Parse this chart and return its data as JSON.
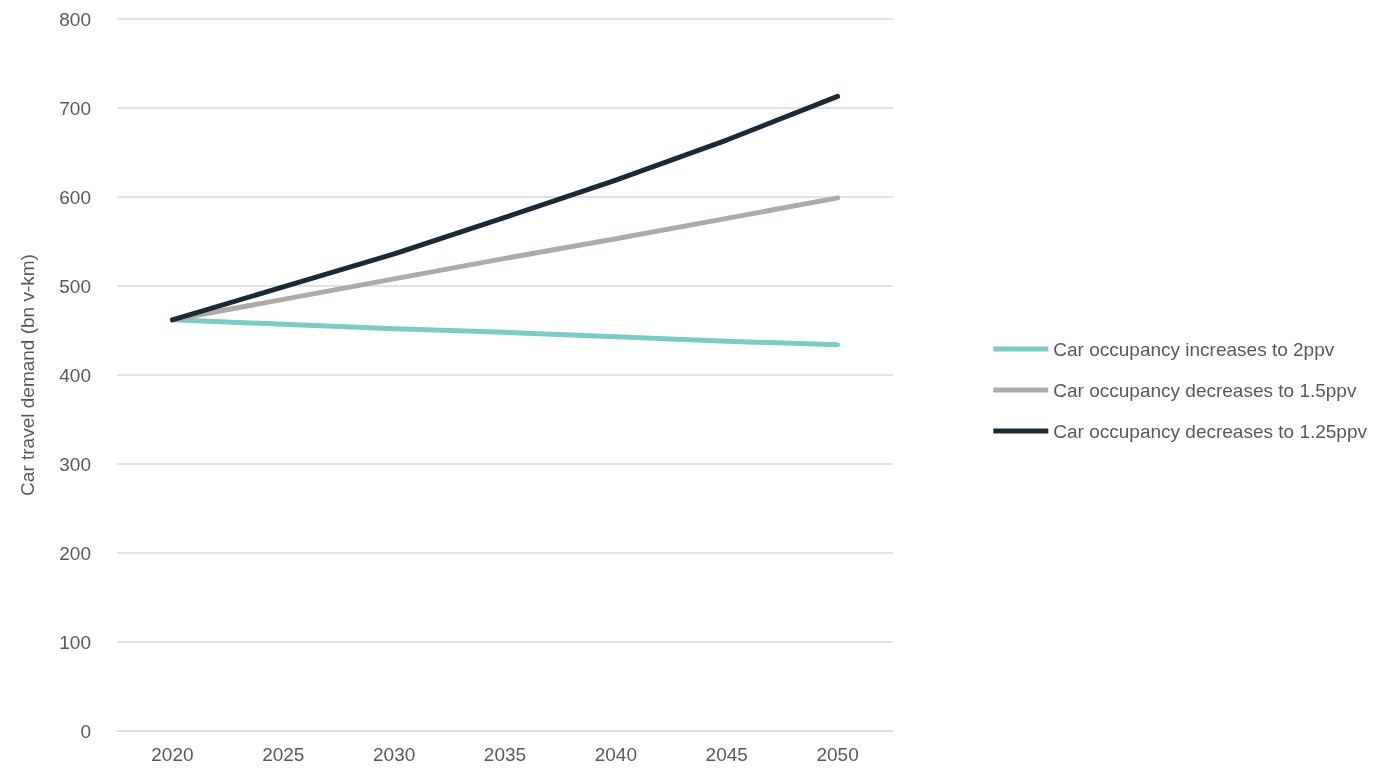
{
  "chart_data": {
    "type": "line",
    "ylabel": "Car travel demand (bn v-km)",
    "categories": [
      "2020",
      "2025",
      "2030",
      "2035",
      "2040",
      "2045",
      "2050"
    ],
    "series": [
      {
        "name": "Car occupancy increases to 2ppv",
        "color": "#7ccbc5",
        "values": [
          462,
          457,
          452,
          448,
          443,
          438,
          434
        ]
      },
      {
        "name": "Car occupancy decreases to 1.5ppv",
        "color": "#aeaaab",
        "values": [
          462,
          485,
          508,
          531,
          553,
          576,
          599
        ]
      },
      {
        "name": "Car occupancy decreases to 1.25ppv",
        "color": "#1b2b36",
        "values": [
          462,
          499,
          536,
          577,
          619,
          664,
          713
        ]
      }
    ],
    "ylim": [
      0,
      800
    ],
    "yticks": [
      0,
      100,
      200,
      300,
      400,
      500,
      600,
      700,
      800
    ],
    "grid": "y",
    "legend": "right",
    "marker": "none",
    "line_style": "solid"
  }
}
